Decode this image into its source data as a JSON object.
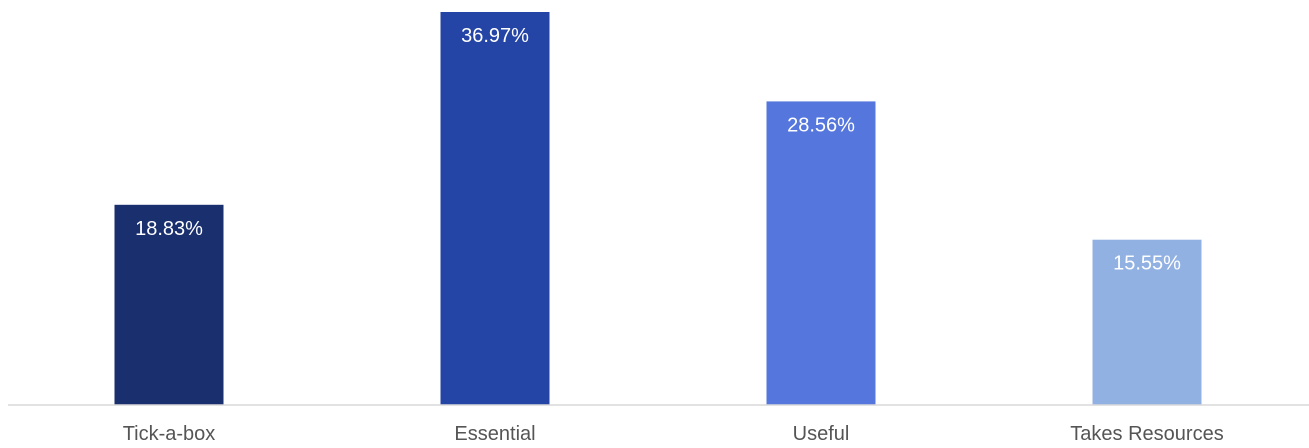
{
  "chart_data": {
    "type": "bar",
    "categories": [
      "Tick-a-box",
      "Essential",
      "Useful",
      "Takes Resources"
    ],
    "values": [
      18.83,
      36.97,
      28.56,
      15.55
    ],
    "value_labels": [
      "18.83%",
      "36.97%",
      "28.56%",
      "15.55%"
    ],
    "colors": [
      "#1a2f6e",
      "#2444a6",
      "#5577dd",
      "#92b1e3"
    ],
    "ylim": [
      0,
      36.97
    ],
    "grid": false,
    "legend": "none",
    "axis_color": "#d9d9d9"
  }
}
